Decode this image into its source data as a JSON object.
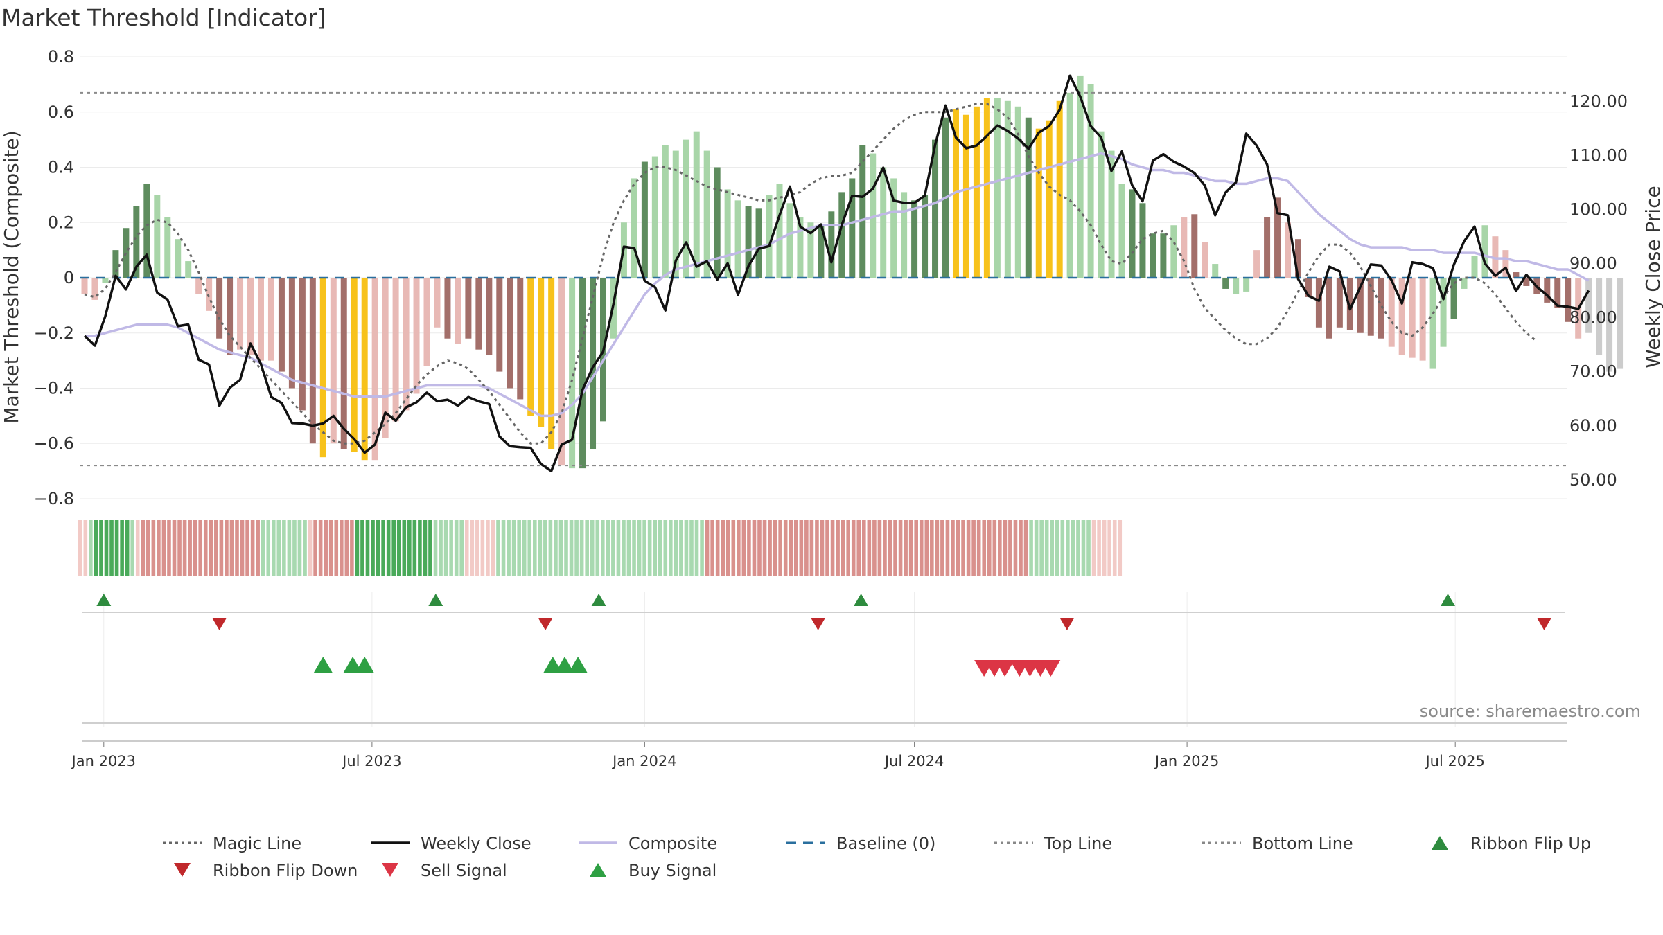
{
  "chart_data": {
    "type": "bar",
    "title": "Market Threshold [Indicator]",
    "ylabel_left": "Market Threshold (Composite)",
    "ylabel_right": "Weekly Close Price",
    "source": "source: sharemaestro.com",
    "ylim_left": [
      -0.8,
      0.8
    ],
    "ylim_right": [
      46.4,
      128.1
    ],
    "yticks_left": [
      {
        "value": 0.8,
        "label": "0.8"
      },
      {
        "value": 0.6,
        "label": "0.6"
      },
      {
        "value": 0.4,
        "label": "0.4"
      },
      {
        "value": 0.2,
        "label": "0.2"
      },
      {
        "value": 0,
        "label": "0"
      },
      {
        "value": -0.2,
        "label": "−0.2"
      },
      {
        "value": -0.4,
        "label": "−0.4"
      },
      {
        "value": -0.6,
        "label": "−0.6"
      },
      {
        "value": -0.8,
        "label": "−0.8"
      }
    ],
    "yticks_right": [
      {
        "value": 120,
        "label": "120.00"
      },
      {
        "value": 110,
        "label": "110.00"
      },
      {
        "value": 100,
        "label": "100.00"
      },
      {
        "value": 90,
        "label": "90.00"
      },
      {
        "value": 80,
        "label": "80.00"
      },
      {
        "value": 70,
        "label": "70.00"
      },
      {
        "value": 60,
        "label": "60.00"
      },
      {
        "value": 50,
        "label": "50.00"
      }
    ],
    "top_line": 0.67,
    "bottom_line": -0.68,
    "x_start": "2022-12-19",
    "xticks": [
      {
        "date": "2023-01-01",
        "label": "Jan 2023"
      },
      {
        "date": "2023-07-01",
        "label": "Jul 2023"
      },
      {
        "date": "2024-01-01",
        "label": "Jan 2024"
      },
      {
        "date": "2024-07-01",
        "label": "Jul 2024"
      },
      {
        "date": "2025-01-01",
        "label": "Jan 2025"
      },
      {
        "date": "2025-07-01",
        "label": "Jul 2025"
      }
    ],
    "bar_legend": [
      {
        "key": "G",
        "color": "#5e8c5e"
      },
      {
        "key": "g",
        "color": "#a8d5a8"
      },
      {
        "key": "R",
        "color": "#a36f6a"
      },
      {
        "key": "r",
        "color": "#e8b9b5"
      },
      {
        "key": "Y",
        "color": "#f7c21b"
      }
    ],
    "composite_bars": [
      -0.06,
      -0.08,
      -0.02,
      0.1,
      0.18,
      0.26,
      0.34,
      0.3,
      0.22,
      0.14,
      0.06,
      -0.06,
      -0.12,
      -0.22,
      -0.28,
      -0.26,
      -0.28,
      -0.3,
      -0.3,
      -0.34,
      -0.4,
      -0.48,
      -0.6,
      -0.65,
      -0.6,
      -0.62,
      -0.63,
      -0.66,
      -0.66,
      -0.58,
      -0.52,
      -0.48,
      -0.42,
      -0.32,
      -0.18,
      -0.22,
      -0.24,
      -0.22,
      -0.26,
      -0.28,
      -0.34,
      -0.4,
      -0.44,
      -0.5,
      -0.54,
      -0.62,
      -0.68,
      -0.69,
      -0.69,
      -0.62,
      -0.52,
      -0.22,
      0.2,
      0.36,
      0.42,
      0.44,
      0.48,
      0.46,
      0.5,
      0.53,
      0.46,
      0.4,
      0.32,
      0.28,
      0.26,
      0.25,
      0.3,
      0.34,
      0.27,
      0.22,
      0.2,
      0.19,
      0.24,
      0.31,
      0.36,
      0.48,
      0.45,
      0.4,
      0.36,
      0.31,
      0.28,
      0.3,
      0.5,
      0.58,
      0.61,
      0.59,
      0.62,
      0.65,
      0.65,
      0.64,
      0.62,
      0.58,
      0.54,
      0.57,
      0.64,
      0.67,
      0.73,
      0.7,
      0.53,
      0.46,
      0.34,
      0.32,
      0.27,
      0.16,
      0.16,
      0.19,
      0.22,
      0.23,
      0.13,
      0.05,
      -0.04,
      -0.06,
      -0.05,
      0.1,
      0.22,
      0.29,
      0.2,
      0.14,
      -0.07,
      -0.18,
      -0.22,
      -0.18,
      -0.19,
      -0.2,
      -0.21,
      -0.22,
      -0.25,
      -0.28,
      -0.29,
      -0.3,
      -0.33,
      -0.25,
      -0.15,
      -0.04,
      0.08,
      0.19,
      0.15,
      0.1,
      0.02,
      -0.03,
      -0.06,
      -0.09,
      -0.11,
      -0.16,
      -0.22,
      -0.2,
      -0.28,
      -0.34,
      -0.33
    ],
    "bar_colors": "rrgGGGGggggrrRRrrrrRRRRYrRYYrrrrrrrRrRRRRRRYYYrgGGGgggGggggggGggGGgggggGGGGGggggGGGGYYYYgggGYYYggggggGGGGgrRrgGggrRRrRRRRRRRRRrrrrggGgggrrRRRRRRr",
    "weekly_close": [
      76.5,
      74.7,
      80.1,
      87.6,
      85.1,
      89.3,
      91.5,
      84.5,
      83.2,
      78.3,
      78.6,
      72.1,
      71.2,
      63.6,
      66.9,
      68.4,
      75.1,
      71.3,
      65.2,
      64.1,
      60.4,
      60.3,
      59.9,
      60.3,
      61.7,
      59.3,
      57.4,
      54.9,
      56.4,
      62.3,
      60.8,
      63.3,
      64.2,
      66.0,
      64.4,
      64.7,
      63.6,
      65.2,
      64.4,
      63.9,
      57.9,
      56.1,
      55.9,
      55.8,
      52.8,
      51.5,
      56.4,
      57.3,
      66.5,
      70.7,
      73.6,
      82.5,
      93.0,
      92.7,
      86.7,
      85.5,
      81.2,
      90.4,
      93.8,
      89.3,
      90.3,
      86.9,
      89.9,
      84.1,
      89.4,
      92.6,
      93.1,
      98.8,
      104.1,
      96.7,
      95.5,
      97.1,
      90.1,
      97.0,
      102.4,
      102.2,
      103.7,
      107.6,
      101.5,
      101.1,
      101.1,
      102.4,
      111.8,
      119.1,
      113.2,
      111.2,
      111.7,
      113.5,
      115.4,
      114.4,
      113.0,
      111.1,
      114.1,
      115.3,
      118.3,
      124.6,
      120.7,
      115.3,
      113.2,
      107.0,
      110.6,
      104.3,
      101.4,
      108.9,
      110.1,
      108.7,
      107.8,
      106.6,
      104.3,
      98.8,
      103.0,
      104.9,
      113.9,
      111.7,
      108.2,
      99.2,
      98.8,
      87.0,
      83.9,
      83.0,
      89.3,
      88.4,
      81.4,
      85.6,
      89.7,
      89.5,
      86.8,
      82.5,
      90.1,
      89.8,
      89.0,
      83.3,
      89.6,
      94.0,
      96.7,
      89.9,
      87.6,
      89.1,
      84.8,
      87.8,
      85.6,
      84.0,
      82.1,
      81.9,
      81.5,
      84.9
    ],
    "magic_line": [
      -0.06,
      -0.07,
      -0.04,
      0.02,
      0.09,
      0.15,
      0.19,
      0.21,
      0.2,
      0.16,
      0.1,
      0.02,
      -0.07,
      -0.15,
      -0.21,
      -0.25,
      -0.29,
      -0.33,
      -0.37,
      -0.41,
      -0.45,
      -0.49,
      -0.53,
      -0.56,
      -0.59,
      -0.6,
      -0.6,
      -0.59,
      -0.56,
      -0.53,
      -0.49,
      -0.44,
      -0.39,
      -0.35,
      -0.32,
      -0.3,
      -0.31,
      -0.33,
      -0.37,
      -0.41,
      -0.46,
      -0.51,
      -0.56,
      -0.6,
      -0.6,
      -0.56,
      -0.49,
      -0.37,
      -0.22,
      -0.07,
      0.08,
      0.2,
      0.28,
      0.34,
      0.38,
      0.4,
      0.4,
      0.39,
      0.37,
      0.35,
      0.33,
      0.32,
      0.31,
      0.3,
      0.29,
      0.28,
      0.28,
      0.29,
      0.3,
      0.31,
      0.34,
      0.36,
      0.37,
      0.37,
      0.38,
      0.42,
      0.46,
      0.5,
      0.54,
      0.57,
      0.59,
      0.6,
      0.6,
      0.6,
      0.61,
      0.62,
      0.63,
      0.63,
      0.61,
      0.58,
      0.52,
      0.44,
      0.38,
      0.33,
      0.3,
      0.28,
      0.24,
      0.19,
      0.12,
      0.06,
      0.05,
      0.09,
      0.14,
      0.16,
      0.17,
      0.13,
      0.06,
      -0.04,
      -0.11,
      -0.15,
      -0.19,
      -0.22,
      -0.24,
      -0.24,
      -0.22,
      -0.18,
      -0.12,
      -0.05,
      0.02,
      0.08,
      0.12,
      0.12,
      0.09,
      0.04,
      -0.03,
      -0.1,
      -0.16,
      -0.2,
      -0.21,
      -0.18,
      -0.13,
      -0.07,
      -0.02,
      0.0,
      0.0,
      -0.02,
      -0.06,
      -0.11,
      -0.16,
      -0.2,
      -0.23
    ],
    "composite_line": [
      -0.21,
      -0.21,
      -0.2,
      -0.19,
      -0.18,
      -0.17,
      -0.17,
      -0.17,
      -0.17,
      -0.18,
      -0.2,
      -0.22,
      -0.24,
      -0.26,
      -0.27,
      -0.28,
      -0.29,
      -0.31,
      -0.33,
      -0.35,
      -0.37,
      -0.38,
      -0.39,
      -0.4,
      -0.41,
      -0.42,
      -0.43,
      -0.43,
      -0.43,
      -0.43,
      -0.42,
      -0.41,
      -0.4,
      -0.39,
      -0.39,
      -0.39,
      -0.39,
      -0.39,
      -0.39,
      -0.4,
      -0.42,
      -0.44,
      -0.46,
      -0.48,
      -0.5,
      -0.5,
      -0.49,
      -0.46,
      -0.42,
      -0.36,
      -0.3,
      -0.24,
      -0.18,
      -0.12,
      -0.06,
      -0.02,
      0.01,
      0.03,
      0.04,
      0.05,
      0.06,
      0.07,
      0.08,
      0.09,
      0.1,
      0.11,
      0.12,
      0.14,
      0.16,
      0.17,
      0.18,
      0.19,
      0.19,
      0.19,
      0.2,
      0.21,
      0.22,
      0.23,
      0.24,
      0.24,
      0.25,
      0.26,
      0.27,
      0.29,
      0.31,
      0.32,
      0.33,
      0.34,
      0.35,
      0.36,
      0.37,
      0.38,
      0.39,
      0.4,
      0.41,
      0.42,
      0.43,
      0.44,
      0.45,
      0.44,
      0.43,
      0.41,
      0.4,
      0.39,
      0.39,
      0.38,
      0.38,
      0.37,
      0.36,
      0.35,
      0.35,
      0.34,
      0.34,
      0.35,
      0.36,
      0.36,
      0.35,
      0.31,
      0.27,
      0.23,
      0.2,
      0.17,
      0.14,
      0.12,
      0.11,
      0.11,
      0.11,
      0.11,
      0.1,
      0.1,
      0.1,
      0.09,
      0.09,
      0.09,
      0.09,
      0.08,
      0.07,
      0.07,
      0.06,
      0.06,
      0.05,
      0.04,
      0.03,
      0.03,
      0.01,
      -0.01
    ],
    "ribbon": "rrgGGGGGGGgrRRRRRRRRRRRRRRRRRRRRRRRgggggggggrRRRRRRRRGGGGGGGGGGGGGGGggggggrrrrrrggggggggggggggggggggggggggggggggggggggggRRRRRRRRRRRRRRRRRRRRRRRRRRRRRRRRRRRRRRRRRRRRRRRRRRRRRRRRRRRRRRggggggggggggrrrrrr",
    "ribbon_colors": [
      {
        "key": "G",
        "color": "#4aaa5a"
      },
      {
        "key": "g",
        "color": "#a8d9b0"
      },
      {
        "key": "R",
        "color": "#d9918d"
      },
      {
        "key": "r",
        "color": "#f2cac6"
      }
    ],
    "ribbon_flip_up_dates": [
      "2023-01-01",
      "2023-08-13",
      "2023-12-01",
      "2024-05-26",
      "2025-06-26"
    ],
    "ribbon_flip_down_dates": [
      "2023-03-20",
      "2023-10-26",
      "2024-04-27",
      "2024-10-12",
      "2025-08-30"
    ],
    "buy_signal_dates": [
      "2023-05-29",
      "2023-06-18",
      "2023-06-26",
      "2023-10-31",
      "2023-11-08",
      "2023-11-17"
    ],
    "sell_signal_dates": [
      "2024-08-17",
      "2024-08-24",
      "2024-08-31",
      "2024-09-10",
      "2024-09-17",
      "2024-09-24",
      "2024-10-01"
    ],
    "legend": [
      {
        "label": "Magic Line",
        "symbol": "dotted",
        "color": "#666666"
      },
      {
        "label": "Weekly Close",
        "symbol": "solid",
        "color": "#111111"
      },
      {
        "label": "Composite",
        "symbol": "solid",
        "color": "#c0b9e6"
      },
      {
        "label": "Baseline (0)",
        "symbol": "dashed",
        "color": "#2a6f9e"
      },
      {
        "label": "Top Line",
        "symbol": "dotted",
        "color": "#888888"
      },
      {
        "label": "Bottom Line",
        "symbol": "dotted",
        "color": "#888888"
      },
      {
        "label": "Ribbon Flip Up",
        "symbol": "triangle-up",
        "color": "#2e8b3e"
      },
      {
        "label": "Ribbon Flip Down",
        "symbol": "triangle-down",
        "color": "#c0282b"
      },
      {
        "label": "Sell Signal",
        "symbol": "triangle-down",
        "color": "#dc3545"
      },
      {
        "label": "Buy Signal",
        "symbol": "triangle-up",
        "color": "#2ea043"
      }
    ]
  }
}
